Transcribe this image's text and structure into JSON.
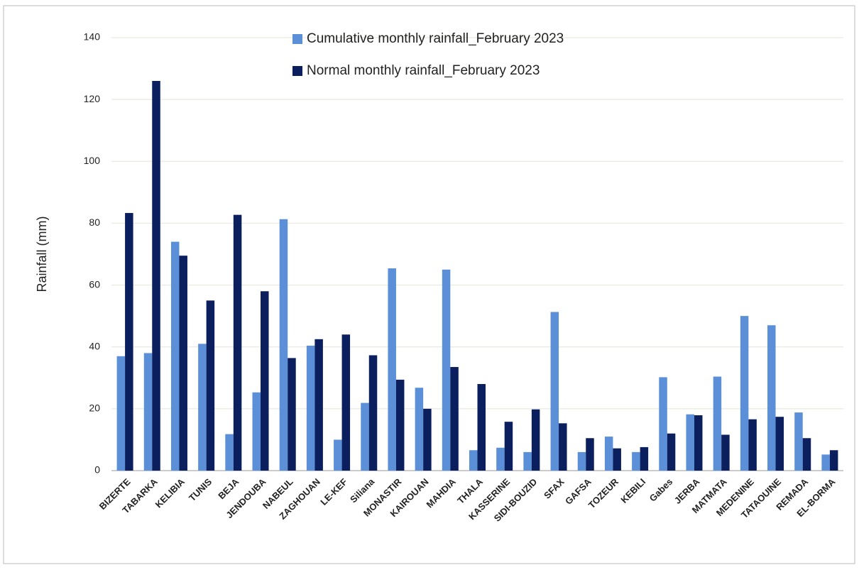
{
  "chart_data": {
    "type": "bar",
    "y_label": "Rainfall  (mm)",
    "categories": [
      "BIZERTE",
      "TABARKA",
      "KELIBIA",
      "TUNIS",
      "BEJA",
      "JENDOUBA",
      "NABEUL",
      "ZAGHOUAN",
      "LE-KEF",
      "Siliana",
      "MONASTIR",
      "KAIROUAN",
      "MAHDIA",
      "THALA",
      "KASSERINE",
      "SIDI-BOUZID",
      "SFAX",
      "GAFSA",
      "TOZEUR",
      "KEBILI",
      "Gabes",
      "JERBA",
      "MATMATA",
      "MEDENINE",
      "TATAOUINE",
      "REMADA",
      "EL-BORMA"
    ],
    "series": [
      {
        "name": "Cumulative monthly rainfall_February 2023",
        "color": "#5b8fd8",
        "values": [
          37,
          38,
          74,
          41,
          11.8,
          25.3,
          81.3,
          40.4,
          10,
          21.9,
          65.4,
          26.8,
          65,
          6.6,
          7.4,
          6,
          51.3,
          6,
          11,
          6,
          30.2,
          18.2,
          30.4,
          50,
          47,
          18.8,
          5.2
        ]
      },
      {
        "name": "Normal monthly rainfall_February 2023",
        "color": "#0b1f5e",
        "values": [
          83.3,
          126,
          69.5,
          55,
          82.7,
          58,
          36.4,
          42.5,
          44,
          37.3,
          29.4,
          20,
          33.5,
          28,
          15.8,
          19.8,
          15.3,
          10.5,
          7.2,
          7.6,
          12,
          17.9,
          11.6,
          16.6,
          17.4,
          10.5,
          6.6
        ]
      }
    ],
    "ylim": [
      0,
      140
    ],
    "yticks": [
      0,
      20,
      40,
      60,
      80,
      100,
      120,
      140
    ],
    "grid": true
  }
}
